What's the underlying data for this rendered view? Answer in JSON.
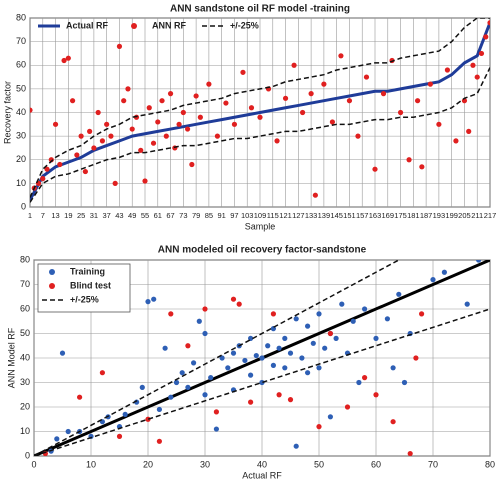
{
  "chart_data": [
    {
      "type": "line",
      "title": "ANN sandstone oil RF model -training",
      "xlabel": "Sample",
      "ylabel": "Recovery factor",
      "xlim": [
        1,
        217
      ],
      "ylim": [
        0,
        80
      ],
      "yticks": [
        0,
        10,
        20,
        30,
        40,
        50,
        60,
        70,
        80
      ],
      "xticks": [
        1,
        7,
        13,
        19,
        25,
        31,
        37,
        43,
        49,
        55,
        61,
        67,
        73,
        79,
        85,
        91,
        97,
        103,
        109,
        115,
        121,
        127,
        133,
        139,
        145,
        151,
        157,
        163,
        169,
        175,
        181,
        187,
        193,
        199,
        205,
        211,
        217
      ],
      "grid": true,
      "legend": "top-left",
      "series": [
        {
          "name": "Actual RF",
          "color": "#1f3c99",
          "style": "solid",
          "x": [
            1,
            7,
            13,
            19,
            25,
            31,
            37,
            43,
            49,
            55,
            61,
            67,
            73,
            79,
            85,
            91,
            97,
            103,
            109,
            115,
            121,
            127,
            133,
            139,
            145,
            151,
            157,
            163,
            169,
            175,
            181,
            187,
            193,
            199,
            205,
            211,
            217
          ],
          "values": [
            3,
            13,
            17,
            19,
            21,
            24,
            26,
            28,
            30,
            31,
            32,
            33,
            34,
            35,
            36,
            37,
            38,
            39,
            40,
            41,
            42,
            43,
            44,
            45,
            46,
            47,
            48,
            49,
            49,
            50,
            51,
            52,
            53,
            56,
            61,
            64,
            78
          ]
        },
        {
          "name": "ANN RF",
          "color": "#e02020",
          "style": "markers",
          "x": [
            1,
            3,
            5,
            7,
            9,
            11,
            13,
            15,
            17,
            19,
            21,
            23,
            25,
            27,
            29,
            31,
            33,
            35,
            37,
            39,
            41,
            43,
            45,
            47,
            49,
            51,
            53,
            55,
            57,
            59,
            61,
            63,
            65,
            67,
            69,
            71,
            73,
            75,
            77,
            79,
            81,
            85,
            89,
            93,
            97,
            101,
            105,
            109,
            113,
            117,
            121,
            125,
            129,
            133,
            135,
            139,
            143,
            147,
            151,
            155,
            159,
            163,
            167,
            171,
            175,
            179,
            183,
            185,
            189,
            193,
            197,
            201,
            205,
            207,
            209,
            211,
            213,
            215,
            217
          ],
          "values": [
            41,
            8,
            10,
            12,
            16,
            20,
            35,
            18,
            62,
            63,
            45,
            22,
            30,
            15,
            32,
            25,
            40,
            28,
            35,
            30,
            10,
            68,
            45,
            50,
            33,
            38,
            24,
            11,
            42,
            27,
            36,
            45,
            30,
            48,
            25,
            35,
            40,
            33,
            18,
            47,
            38,
            52,
            30,
            44,
            35,
            57,
            42,
            38,
            50,
            28,
            46,
            60,
            40,
            48,
            5,
            52,
            36,
            64,
            45,
            30,
            55,
            16,
            48,
            62,
            40,
            20,
            45,
            17,
            52,
            35,
            58,
            28,
            45,
            32,
            60,
            55,
            65,
            72,
            78
          ]
        },
        {
          "name": "+/-25%",
          "color": "#111111",
          "style": "dashed",
          "x": [
            1,
            7,
            13,
            19,
            25,
            31,
            37,
            43,
            49,
            55,
            61,
            67,
            73,
            79,
            85,
            91,
            97,
            103,
            109,
            115,
            121,
            127,
            133,
            139,
            145,
            151,
            157,
            163,
            169,
            175,
            181,
            187,
            193,
            199,
            205,
            211,
            217
          ],
          "values": [
            4,
            16,
            21,
            24,
            26,
            30,
            33,
            35,
            38,
            39,
            40,
            41,
            43,
            44,
            45,
            46,
            48,
            49,
            50,
            51,
            53,
            54,
            55,
            56,
            58,
            59,
            60,
            61,
            61,
            63,
            64,
            65,
            66,
            70,
            76,
            80,
            80
          ],
          "lower_x": [
            1,
            7,
            13,
            19,
            25,
            31,
            37,
            43,
            49,
            55,
            61,
            67,
            73,
            79,
            85,
            91,
            97,
            103,
            109,
            115,
            121,
            127,
            133,
            139,
            145,
            151,
            157,
            163,
            169,
            175,
            181,
            187,
            193,
            199,
            205,
            211,
            217
          ],
          "lower": [
            2,
            10,
            13,
            14,
            16,
            18,
            20,
            21,
            23,
            23,
            24,
            25,
            26,
            26,
            27,
            28,
            29,
            29,
            30,
            31,
            32,
            32,
            33,
            34,
            35,
            35,
            36,
            37,
            37,
            38,
            38,
            39,
            40,
            42,
            46,
            48,
            59
          ]
        }
      ]
    },
    {
      "type": "scatter",
      "title": "ANN modeled oil recovery factor-sandstone",
      "xlabel": "Actual RF",
      "ylabel": "ANN Model RF",
      "xlim": [
        0,
        80
      ],
      "ylim": [
        0,
        80
      ],
      "xticks": [
        0,
        10,
        20,
        30,
        40,
        50,
        60,
        70,
        80
      ],
      "yticks": [
        0,
        10,
        20,
        30,
        40,
        50,
        60,
        70,
        80
      ],
      "grid": true,
      "legend": "top-left",
      "identity": {
        "color": "#000000",
        "x": [
          0,
          80
        ],
        "values": [
          0,
          80
        ]
      },
      "series": [
        {
          "name": "Training",
          "color": "#2e5fb5",
          "style": "markers",
          "x": [
            3,
            4,
            5,
            6,
            8,
            10,
            12,
            13,
            15,
            16,
            18,
            19,
            20,
            21,
            22,
            23,
            24,
            25,
            26,
            27,
            28,
            29,
            30,
            30,
            31,
            32,
            33,
            34,
            35,
            35,
            36,
            37,
            38,
            38,
            39,
            40,
            40,
            41,
            42,
            42,
            43,
            44,
            44,
            45,
            46,
            46,
            47,
            48,
            48,
            49,
            50,
            50,
            51,
            52,
            52,
            53,
            54,
            55,
            56,
            57,
            58,
            60,
            62,
            63,
            64,
            65,
            66,
            70,
            72,
            76,
            78
          ],
          "values": [
            2,
            7,
            42,
            10,
            10,
            8,
            14,
            16,
            12,
            17,
            22,
            28,
            63,
            64,
            19,
            44,
            24,
            30,
            34,
            28,
            38,
            55,
            25,
            50,
            32,
            11,
            40,
            36,
            42,
            27,
            45,
            39,
            33,
            48,
            41,
            40,
            30,
            45,
            52,
            37,
            44,
            36,
            48,
            42,
            56,
            4,
            40,
            53,
            34,
            46,
            58,
            36,
            44,
            50,
            16,
            48,
            62,
            42,
            55,
            30,
            60,
            48,
            56,
            36,
            66,
            30,
            50,
            72,
            75,
            62,
            80
          ]
        },
        {
          "name": "Blind test",
          "color": "#e02020",
          "style": "markers",
          "x": [
            2,
            8,
            12,
            15,
            20,
            22,
            24,
            27,
            30,
            32,
            35,
            36,
            38,
            42,
            43,
            45,
            50,
            52,
            55,
            58,
            60,
            63,
            66,
            67,
            68
          ],
          "values": [
            1,
            24,
            34,
            8,
            15,
            6,
            58,
            45,
            60,
            18,
            64,
            62,
            22,
            58,
            25,
            23,
            12,
            50,
            20,
            32,
            25,
            14,
            1,
            40,
            58
          ]
        },
        {
          "name": "+/-25%",
          "color": "#111111",
          "style": "dashed",
          "x": [
            0,
            64
          ],
          "values": [
            0,
            80
          ],
          "lower_x": [
            0,
            80
          ],
          "lower": [
            0,
            60
          ]
        }
      ]
    }
  ]
}
